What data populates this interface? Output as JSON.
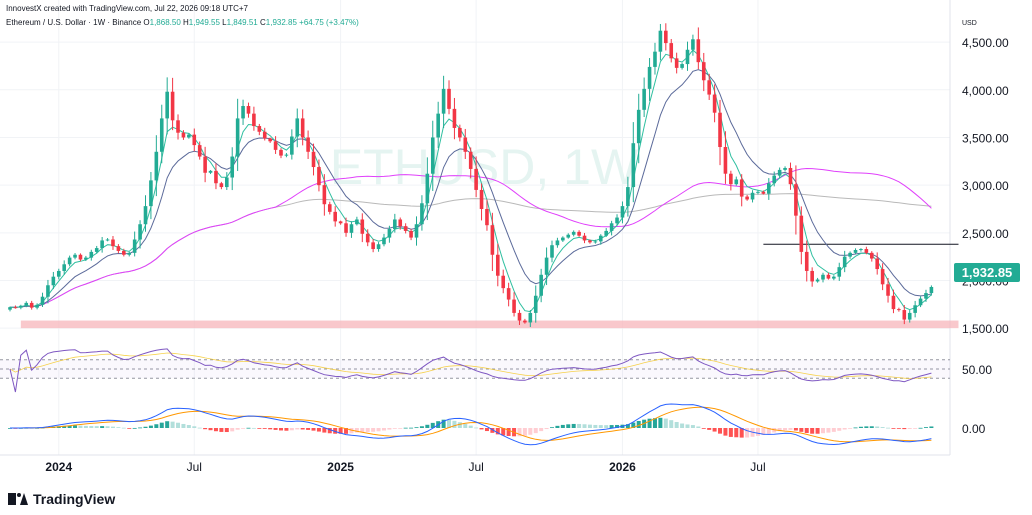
{
  "header": {
    "byline": "InnovestX created with TradingView.com, Jul 22, 2026 09:18 UTC+7",
    "symbol": "Ethereum / U.S. Dollar · 1W · Binance",
    "open_label": "O",
    "open": "1,868.50",
    "high_label": "H",
    "high": "1,949.55",
    "low_label": "L",
    "low": "1,849.51",
    "close_label": "C",
    "close": "1,932.85",
    "change": "+64.75 (+3.47%)"
  },
  "watermark": "ETHUSD, 1W",
  "currency": "USD",
  "price_badge": "1,932.85",
  "brand": "TradingView",
  "colors": {
    "up": "#22ab94",
    "down": "#f23645",
    "fast_ma": "#2fbfa0",
    "slow_ma": "#5b6a9a",
    "ma_pink": "#e040fb",
    "ma_gray": "#b9b9b9",
    "support_zone": "#f7b5bb",
    "rsi_line": "#7e57c2",
    "macd_line": "#2962ff",
    "signal_line": "#ff9800",
    "badge": "#22ab94"
  },
  "chart_data": [
    {
      "type": "candlestick",
      "panel": "price",
      "interval": "1W",
      "ylim": [
        1250,
        4900
      ],
      "yticks": [
        {
          "value": 1500,
          "label": "1,500.00"
        },
        {
          "value": 2000,
          "label": "2,000.00"
        },
        {
          "value": 2500,
          "label": "2,500.00"
        },
        {
          "value": 3000,
          "label": "3,000.00"
        },
        {
          "value": 3500,
          "label": "3,500.00"
        },
        {
          "value": 4000,
          "label": "4,000.00"
        },
        {
          "value": 4500,
          "label": "4,500.00"
        }
      ],
      "xticks": [
        {
          "week": 9,
          "label": "2024"
        },
        {
          "week": 34,
          "label": "Jul"
        },
        {
          "week": 61,
          "label": "2025"
        },
        {
          "week": 86,
          "label": "Jul"
        },
        {
          "week": 113,
          "label": "2026"
        },
        {
          "week": 138,
          "label": "Jul"
        }
      ],
      "close": [
        1720,
        1715,
        1735,
        1765,
        1715,
        1745,
        1830,
        1950,
        2040,
        2100,
        2170,
        2240,
        2270,
        2220,
        2240,
        2300,
        2340,
        2420,
        2430,
        2360,
        2310,
        2270,
        2290,
        2430,
        2590,
        2780,
        3050,
        3350,
        3700,
        3980,
        3680,
        3550,
        3500,
        3530,
        3420,
        3300,
        3130,
        3150,
        3020,
        2980,
        3080,
        3300,
        3700,
        3830,
        3750,
        3620,
        3560,
        3490,
        3460,
        3370,
        3310,
        3320,
        3510,
        3700,
        3500,
        3350,
        3190,
        3000,
        2800,
        2720,
        2620,
        2600,
        2500,
        2590,
        2640,
        2490,
        2400,
        2330,
        2380,
        2450,
        2540,
        2640,
        2570,
        2520,
        2450,
        2590,
        2810,
        3120,
        3500,
        3750,
        4010,
        3800,
        3600,
        3500,
        3350,
        3170,
        2950,
        2750,
        2580,
        2270,
        2050,
        1920,
        1800,
        1660,
        1580,
        1560,
        1660,
        1840,
        2060,
        2240,
        2370,
        2420,
        2450,
        2480,
        2510,
        2470,
        2420,
        2400,
        2410,
        2470,
        2520,
        2600,
        2660,
        2780,
        2980,
        3440,
        3790,
        4010,
        4240,
        4400,
        4620,
        4490,
        4330,
        4230,
        4270,
        4420,
        4530,
        4290,
        4100,
        3950,
        3760,
        3400,
        3120,
        3010,
        3060,
        2880,
        2850,
        2920,
        2930,
        2910,
        3020,
        3100,
        3160,
        3180,
        3010,
        2680,
        2300,
        2100,
        1990,
        2010,
        2060,
        2020,
        2040,
        2140,
        2250,
        2290,
        2320,
        2330,
        2290,
        2230,
        2120,
        1960,
        1840,
        1700,
        1690,
        1590,
        1660,
        1740,
        1810,
        1868,
        1932
      ],
      "markers": {
        "support_zone": [
          1500,
          1580
        ],
        "resistance_level": 2380,
        "last_price": 1932.85
      },
      "overlays": [
        "fast moving average",
        "slow moving average",
        "pink moving average",
        "gray moving average"
      ]
    },
    {
      "type": "line",
      "panel": "rsi",
      "ylim": [
        0,
        100
      ],
      "yticks": [
        {
          "value": 50,
          "label": "50.00"
        }
      ],
      "levels": [
        70,
        50,
        30
      ]
    },
    {
      "type": "histogram+line",
      "panel": "macd",
      "yticks": [
        {
          "value": 0,
          "label": "0.00"
        }
      ],
      "series": [
        "macd",
        "signal",
        "histogram"
      ]
    }
  ]
}
